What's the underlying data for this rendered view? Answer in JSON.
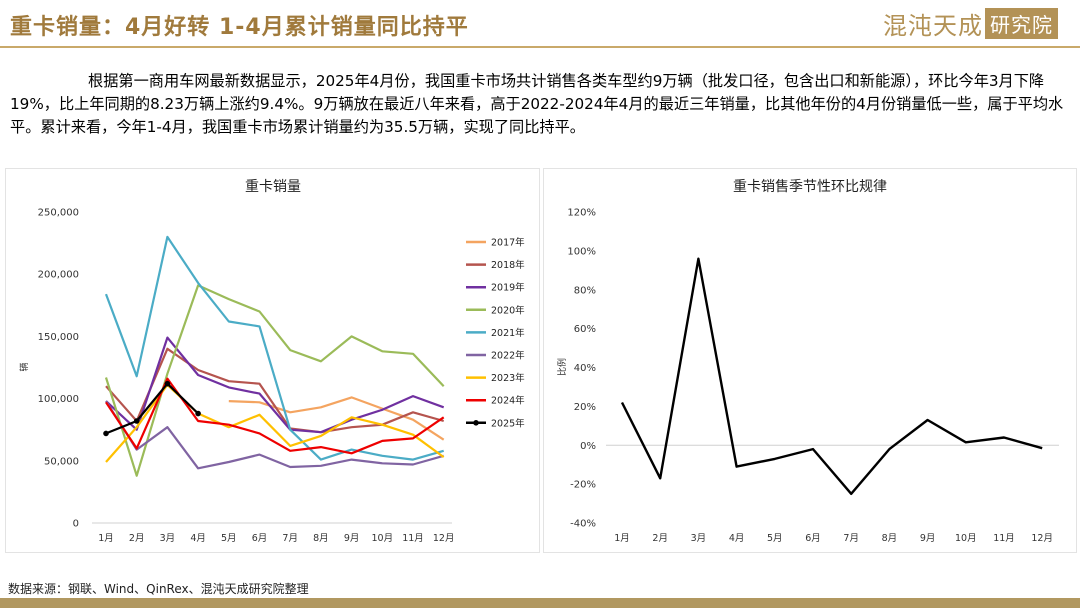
{
  "page": {
    "title": "重卡销量：4月好转 1-4月累计销量同比持平",
    "logo_text_a": "混沌天成",
    "logo_text_b": "研究院",
    "paragraph": "根据第一商用车网最新数据显示，2025年4月份，我国重卡市场共计销售各类车型约9万辆（批发口径，包含出口和新能源），环比今年3月下降19%，比上年同期的8.23万辆上涨约9.4%。9万辆放在最近八年来看，高于2022-2024年4月的最近三年销量，比其他年份的4月份销量低一些，属于平均水平。累计来看，今年1-4月，我国重卡市场累计销量约为35.5万辆，实现了同比持平。",
    "source": "数据来源：钢联、Wind、QinRex、混沌天成研究院整理"
  },
  "colors": {
    "accent": "#a07a3c",
    "rule": "#c9a96a",
    "footer": "#b19860"
  },
  "chart_data": [
    {
      "type": "line",
      "title": "重卡销量",
      "xlabel": "",
      "ylabel": "辆",
      "categories": [
        "1月",
        "2月",
        "3月",
        "4月",
        "5月",
        "6月",
        "7月",
        "8月",
        "9月",
        "10月",
        "11月",
        "12月"
      ],
      "ylim": [
        0,
        250000
      ],
      "yticks": [
        0,
        50000,
        100000,
        150000,
        200000,
        250000
      ],
      "ytick_labels": [
        "0",
        "50,000",
        "100,000",
        "150,000",
        "200,000",
        "250,000"
      ],
      "grid": false,
      "legend": "right",
      "series": [
        {
          "name": "2017年",
          "color": "#f4a460",
          "values": [
            null,
            null,
            null,
            null,
            98000,
            97000,
            89000,
            93000,
            101000,
            92000,
            83000,
            67000
          ]
        },
        {
          "name": "2018年",
          "color": "#b5544e",
          "values": [
            110000,
            82000,
            140000,
            123000,
            114000,
            112000,
            76000,
            73000,
            77000,
            79000,
            89000,
            82000
          ]
        },
        {
          "name": "2019年",
          "color": "#7030a0",
          "values": [
            98000,
            75000,
            149000,
            119000,
            109000,
            104000,
            75000,
            73000,
            83000,
            91000,
            102000,
            93000
          ]
        },
        {
          "name": "2020年",
          "color": "#9bbb59",
          "values": [
            117000,
            38000,
            120000,
            191000,
            180000,
            170000,
            139000,
            130000,
            150000,
            138000,
            136000,
            110000
          ]
        },
        {
          "name": "2021年",
          "color": "#4bacc6",
          "values": [
            184000,
            118000,
            230000,
            193000,
            162000,
            158000,
            75000,
            51000,
            59000,
            54000,
            51000,
            58000
          ]
        },
        {
          "name": "2022年",
          "color": "#8064a2",
          "values": [
            98000,
            59000,
            77000,
            44000,
            49000,
            55000,
            45000,
            46000,
            51000,
            48000,
            47000,
            54000
          ]
        },
        {
          "name": "2023年",
          "color": "#ffc000",
          "values": [
            49000,
            77000,
            111000,
            88000,
            77000,
            87000,
            62000,
            70000,
            85000,
            79000,
            71000,
            53000
          ]
        },
        {
          "name": "2024年",
          "color": "#ee0000",
          "values": [
            97000,
            60000,
            116000,
            82000,
            79000,
            72000,
            58000,
            61000,
            56000,
            66000,
            68000,
            85000
          ]
        },
        {
          "name": "2025年",
          "color": "#000000",
          "values": [
            72000,
            82000,
            112000,
            88000,
            null,
            null,
            null,
            null,
            null,
            null,
            null,
            null
          ]
        }
      ]
    },
    {
      "type": "line",
      "title": "重卡销售季节性环比规律",
      "xlabel": "",
      "ylabel": "比例",
      "categories": [
        "1月",
        "2月",
        "3月",
        "4月",
        "5月",
        "6月",
        "7月",
        "8月",
        "9月",
        "10月",
        "11月",
        "12月"
      ],
      "ylim": [
        -40,
        120
      ],
      "yticks": [
        -40,
        -20,
        0,
        20,
        40,
        60,
        80,
        100,
        120
      ],
      "ytick_labels": [
        "-40%",
        "-20%",
        "0%",
        "20%",
        "40%",
        "60%",
        "80%",
        "100%",
        "120%"
      ],
      "grid": false,
      "series": [
        {
          "color": "#000000",
          "values": [
            22,
            -17,
            96,
            -11,
            -7,
            -2,
            -25,
            -2,
            13,
            1.5,
            4,
            -1.5
          ]
        }
      ]
    }
  ]
}
